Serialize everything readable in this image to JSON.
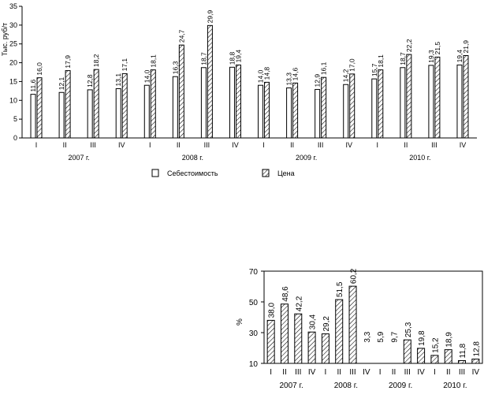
{
  "chart_data": [
    {
      "type": "bar",
      "title": "",
      "xlabel": "",
      "ylabel": "Тыс. руб/т",
      "ylim": [
        0,
        35
      ],
      "yticks": [
        0,
        5,
        10,
        15,
        20,
        25,
        30,
        35
      ],
      "grid": false,
      "legend_position": "bottom",
      "categories": [
        "I",
        "II",
        "III",
        "IV",
        "I",
        "II",
        "III",
        "IV",
        "I",
        "II",
        "III",
        "IV",
        "I",
        "II",
        "III",
        "IV"
      ],
      "groups": [
        {
          "label": "2007 г.",
          "quarters": 4
        },
        {
          "label": "2008 г.",
          "quarters": 4
        },
        {
          "label": "2009 г.",
          "quarters": 4
        },
        {
          "label": "2010 г.",
          "quarters": 4
        }
      ],
      "value_labels": true,
      "series": [
        {
          "name": "Себестоимость",
          "pattern": "solid-white",
          "values": [
            11.6,
            12.1,
            12.8,
            13.1,
            14.0,
            16.3,
            18.7,
            18.8,
            14.0,
            13.3,
            12.9,
            14.2,
            15.7,
            18.7,
            19.3,
            19.4
          ]
        },
        {
          "name": "Цена",
          "pattern": "hatched",
          "values": [
            16.0,
            17.9,
            18.2,
            17.1,
            18.1,
            24.7,
            29.9,
            19.4,
            14.8,
            14.6,
            16.1,
            17.0,
            18.1,
            22.2,
            21.5,
            21.9
          ]
        }
      ]
    },
    {
      "type": "bar",
      "title": "",
      "xlabel": "",
      "ylabel": "%",
      "ylim": [
        10,
        70
      ],
      "yticks": [
        10,
        30,
        50,
        70
      ],
      "grid": false,
      "categories": [
        "I",
        "II",
        "III",
        "IV",
        "I",
        "II",
        "III",
        "IV",
        "I",
        "II",
        "III",
        "IV",
        "I",
        "II",
        "III",
        "IV"
      ],
      "groups": [
        {
          "label": "2007 г.",
          "quarters": 4
        },
        {
          "label": "2008 г.",
          "quarters": 4
        },
        {
          "label": "2009 г.",
          "quarters": 4
        },
        {
          "label": "2010 г.",
          "quarters": 4
        }
      ],
      "series": [
        {
          "name": "",
          "pattern": "hatched",
          "values": [
            38.0,
            48.6,
            42.2,
            30.4,
            29.2,
            51.5,
            60.2,
            3.3,
            5.9,
            9.7,
            25.3,
            19.8,
            15.2,
            18.9,
            11.8,
            12.8
          ]
        }
      ]
    }
  ]
}
